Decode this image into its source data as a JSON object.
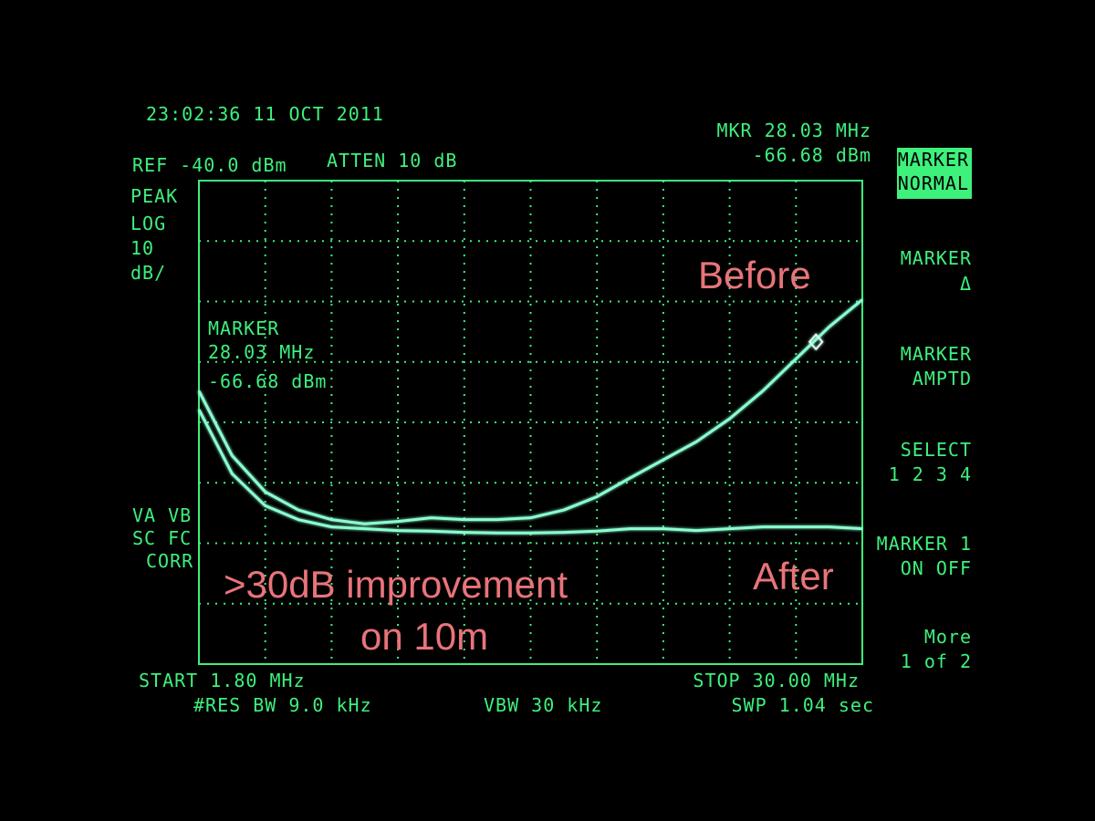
{
  "screen": {
    "timestamp": "23:02:36  11 OCT 2011",
    "ref": "REF -40.0 dBm",
    "atten": "ATTEN 10 dB",
    "mkr_freq": "MKR 28.03 MHz",
    "mkr_ampl": "-66.68 dBm",
    "left_labels": [
      "PEAK",
      "LOG",
      "10",
      "dB/"
    ],
    "marker_readout": [
      "MARKER",
      "28.03 MHz",
      "-66.68 dBm"
    ],
    "status_labels": [
      "VA VB",
      "SC FC",
      "CORR"
    ],
    "start": "START 1.80 MHz",
    "res_bw": "#RES BW 9.0 kHz",
    "vbw": "VBW 30 kHz",
    "stop": "STOP 30.00 MHz",
    "swp": "SWP 1.04  sec",
    "softkeys": [
      [
        "MARKER",
        "NORMAL"
      ],
      [
        "MARKER",
        "Δ"
      ],
      [
        "MARKER",
        "AMPTD"
      ],
      [
        "SELECT",
        "1 2 3 4"
      ],
      [
        "MARKER 1",
        "ON OFF"
      ],
      [
        "More",
        "1 of 2"
      ]
    ]
  },
  "chart_data": {
    "type": "line",
    "x": [
      1.8,
      3.21,
      4.62,
      6.03,
      7.44,
      8.85,
      10.26,
      11.67,
      13.08,
      14.49,
      15.9,
      17.31,
      18.72,
      20.13,
      21.54,
      22.95,
      24.36,
      25.77,
      27.18,
      28.59,
      30
    ],
    "series": [
      {
        "name": "Before",
        "color": "#8affd0",
        "values": [
          -74.8,
          -85.5,
          -91.5,
          -94.5,
          -96.1,
          -96.8,
          -96.4,
          -95.8,
          -96.1,
          -96.1,
          -95.8,
          -94.5,
          -92.3,
          -89.2,
          -86.2,
          -83.2,
          -79.4,
          -74.8,
          -69.5,
          -64.2,
          -59.7
        ]
      },
      {
        "name": "After",
        "color": "#8affd0",
        "values": [
          -77.9,
          -88.5,
          -93.8,
          -96.1,
          -97.3,
          -97.6,
          -97.9,
          -98.0,
          -98.2,
          -98.3,
          -98.3,
          -98.2,
          -98.0,
          -97.6,
          -97.6,
          -97.9,
          -97.6,
          -97.3,
          -97.3,
          -97.3,
          -97.6
        ]
      }
    ],
    "marker": {
      "x": 28.03,
      "y": -66.68
    },
    "annotations": [
      ">30dB improvement",
      "on 10m"
    ],
    "xlim": [
      1.8,
      30
    ],
    "ylim": [
      -120,
      -40
    ],
    "xticks": [
      1.8,
      4.62,
      7.44,
      10.26,
      13.08,
      15.9,
      18.72,
      21.54,
      24.36,
      27.18,
      30
    ],
    "yticks": [
      -120,
      -110,
      -100,
      -90,
      -80,
      -70,
      -60,
      -50,
      -40
    ],
    "grid": true
  }
}
